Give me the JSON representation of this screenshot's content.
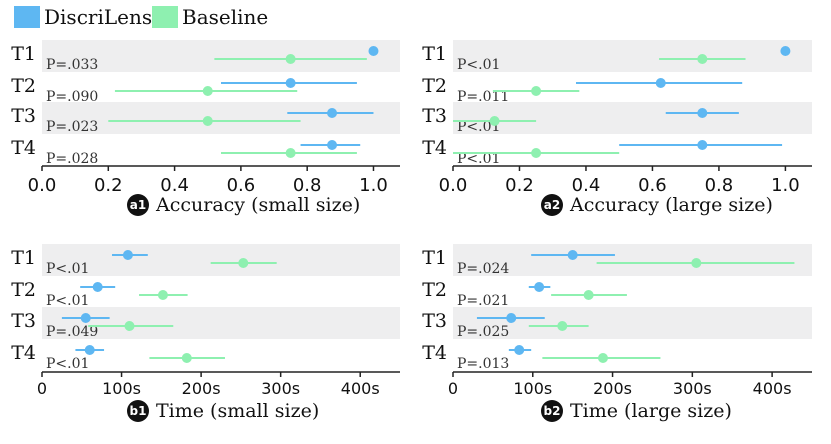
{
  "legend": [
    {
      "name": "DiscriLens",
      "color": "#5eb7f2"
    },
    {
      "name": "Baseline",
      "color": "#8ef0b0"
    }
  ],
  "colors": {
    "band": "#eeeeef",
    "axis": "#222222",
    "badge": "#111111"
  },
  "chart_data": [
    {
      "id": "a1",
      "badge": "a1",
      "type": "interval",
      "title": "Accuracy (small size)",
      "xlim": [
        0,
        1.08
      ],
      "xticks": [
        0,
        0.2,
        0.4,
        0.6,
        0.8,
        1.0
      ],
      "xtick_labels": [
        "0.0",
        "0.2",
        "0.4",
        "0.6",
        "0.8",
        "1.0"
      ],
      "tasks": [
        "T1",
        "T2",
        "T3",
        "T4"
      ],
      "pvalues": [
        "P=.033",
        "P=.090",
        "P=.023",
        "P=.028"
      ],
      "series": [
        {
          "name": "DiscriLens",
          "means": [
            1.0,
            0.75,
            0.875,
            0.875
          ],
          "lows": [
            1.0,
            0.54,
            0.74,
            0.78
          ],
          "highs": [
            1.0,
            0.95,
            1.0,
            0.96
          ]
        },
        {
          "name": "Baseline",
          "means": [
            0.75,
            0.5,
            0.5,
            0.75
          ],
          "lows": [
            0.52,
            0.22,
            0.2,
            0.54
          ],
          "highs": [
            0.98,
            0.77,
            0.78,
            0.95
          ]
        }
      ]
    },
    {
      "id": "a2",
      "badge": "a2",
      "type": "interval",
      "title": "Accuracy (large size)",
      "xlim": [
        0,
        1.08
      ],
      "xticks": [
        0,
        0.2,
        0.4,
        0.6,
        0.8,
        1.0
      ],
      "xtick_labels": [
        "0.0",
        "0.2",
        "0.4",
        "0.6",
        "0.8",
        "1.0"
      ],
      "tasks": [
        "T1",
        "T2",
        "T3",
        "T4"
      ],
      "pvalues": [
        "P<.01",
        "P=.011",
        "P<.01",
        "P<.01"
      ],
      "series": [
        {
          "name": "DiscriLens",
          "means": [
            1.0,
            0.625,
            0.75,
            0.75
          ],
          "lows": [
            1.0,
            0.37,
            0.64,
            0.5
          ],
          "highs": [
            1.0,
            0.87,
            0.86,
            0.99
          ]
        },
        {
          "name": "Baseline",
          "means": [
            0.75,
            0.25,
            0.125,
            0.25
          ],
          "lows": [
            0.62,
            0.12,
            0.0,
            0.0
          ],
          "highs": [
            0.88,
            0.38,
            0.25,
            0.5
          ]
        }
      ]
    },
    {
      "id": "b1",
      "badge": "b1",
      "type": "interval",
      "title": "Time (small size)",
      "xlim": [
        0,
        450
      ],
      "xticks": [
        0,
        100,
        200,
        300,
        400
      ],
      "xtick_labels": [
        "0",
        "100s",
        "200s",
        "300s",
        "400s"
      ],
      "tasks": [
        "T1",
        "T2",
        "T3",
        "T4"
      ],
      "pvalues": [
        "P<.01",
        "P<.01",
        "P=.049",
        "P<.01"
      ],
      "series": [
        {
          "name": "DiscriLens",
          "means": [
            108,
            70,
            55,
            60
          ],
          "lows": [
            88,
            48,
            25,
            42
          ],
          "highs": [
            133,
            92,
            85,
            78
          ]
        },
        {
          "name": "Baseline",
          "means": [
            253,
            152,
            110,
            182
          ],
          "lows": [
            212,
            122,
            58,
            135
          ],
          "highs": [
            295,
            183,
            165,
            230
          ]
        }
      ]
    },
    {
      "id": "b2",
      "badge": "b2",
      "type": "interval",
      "title": "Time (large size)",
      "xlim": [
        0,
        450
      ],
      "xticks": [
        0,
        100,
        200,
        300,
        400
      ],
      "xtick_labels": [
        "0",
        "100s",
        "200s",
        "300s",
        "400s"
      ],
      "tasks": [
        "T1",
        "T2",
        "T3",
        "T4"
      ],
      "pvalues": [
        "P=.024",
        "P=.021",
        "P=.025",
        "P=.013"
      ],
      "series": [
        {
          "name": "DiscriLens",
          "means": [
            150,
            108,
            73,
            83
          ],
          "lows": [
            98,
            95,
            30,
            70
          ],
          "highs": [
            203,
            122,
            115,
            98
          ]
        },
        {
          "name": "Baseline",
          "means": [
            305,
            170,
            137,
            188
          ],
          "lows": [
            180,
            123,
            95,
            112
          ],
          "highs": [
            428,
            218,
            170,
            260
          ]
        }
      ]
    }
  ]
}
